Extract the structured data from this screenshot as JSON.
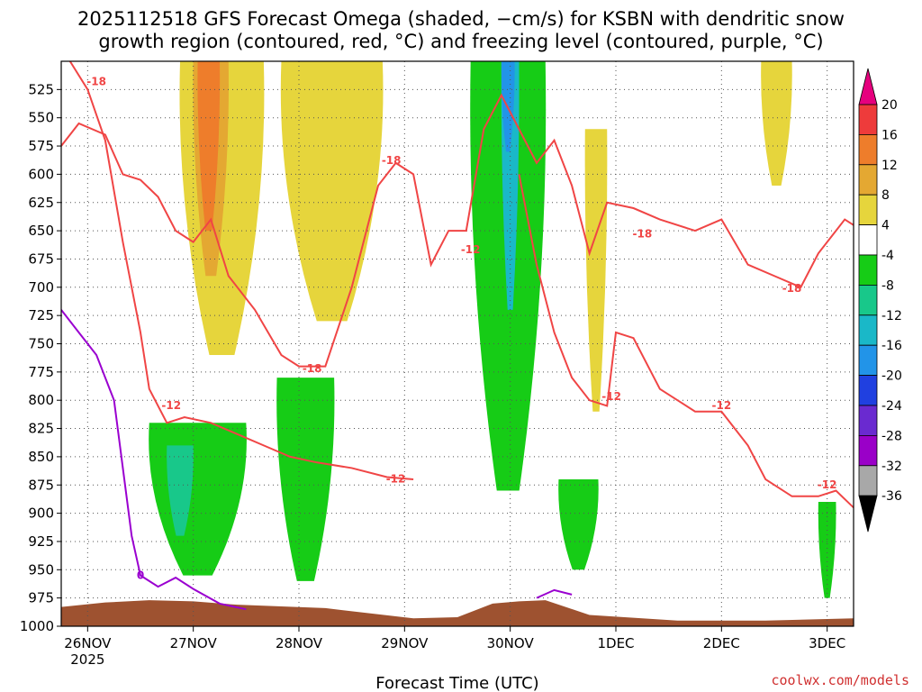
{
  "title_line1": "2025112518 GFS Forecast Omega (shaded, −cm/s) for KSBN with dendritic snow",
  "title_line2": "growth region (contoured, red, °C) and freezing level (contoured, purple, °C)",
  "credit": "coolwx.com/models",
  "colors": {
    "dgz_contour": "#f04545",
    "freezing_contour": "#9a00d0",
    "terrain": "#9e5230",
    "grid": "#555555"
  },
  "chart_data": {
    "type": "heatmap",
    "title": "2025112518 GFS Forecast Omega (shaded, −cm/s) for KSBN with dendritic snow growth region (contoured, red, °C) and freezing level (contoured, purple, °C)",
    "xlabel": "Forecast Time (UTC)",
    "ylabel": "",
    "x_ticks": [
      {
        "label": "26NOV",
        "sublabel": "2025",
        "hour": 6
      },
      {
        "label": "27NOV",
        "sublabel": "",
        "hour": 30
      },
      {
        "label": "28NOV",
        "sublabel": "",
        "hour": 54
      },
      {
        "label": "29NOV",
        "sublabel": "",
        "hour": 78
      },
      {
        "label": "30NOV",
        "sublabel": "",
        "hour": 102
      },
      {
        "label": "1DEC",
        "sublabel": "",
        "hour": 126
      },
      {
        "label": "2DEC",
        "sublabel": "",
        "hour": 150
      },
      {
        "label": "3DEC",
        "sublabel": "",
        "hour": 174
      }
    ],
    "xlim_hours": [
      0,
      180
    ],
    "y_axis_unit": "hPa",
    "ylim": [
      1000,
      500
    ],
    "y_ticks": [
      525,
      550,
      575,
      600,
      625,
      650,
      675,
      700,
      725,
      750,
      775,
      800,
      825,
      850,
      875,
      900,
      925,
      950,
      975,
      1000
    ],
    "colorbar": {
      "levels": [
        20,
        16,
        12,
        8,
        4,
        -4,
        -8,
        -12,
        -16,
        -20,
        -24,
        -28,
        -32,
        -36
      ],
      "bands": [
        {
          "from": 16,
          "to": 20,
          "color": "#ee3b3b"
        },
        {
          "from": 12,
          "to": 16,
          "color": "#ee7d2b"
        },
        {
          "from": 8,
          "to": 12,
          "color": "#e4a832"
        },
        {
          "from": 4,
          "to": 8,
          "color": "#e6d53c"
        },
        {
          "from": -4,
          "to": 4,
          "color": "#ffffff"
        },
        {
          "from": -8,
          "to": -4,
          "color": "#16cc16"
        },
        {
          "from": -12,
          "to": -8,
          "color": "#18c88a"
        },
        {
          "from": -16,
          "to": -12,
          "color": "#1ab8c8"
        },
        {
          "from": -20,
          "to": -16,
          "color": "#2294e8"
        },
        {
          "from": -24,
          "to": -20,
          "color": "#2040e0"
        },
        {
          "from": -28,
          "to": -24,
          "color": "#6a2ad0"
        },
        {
          "from": -32,
          "to": -28,
          "color": "#9a00c8"
        },
        {
          "from": -36,
          "to": -32,
          "color": "#a8a8a8"
        }
      ],
      "top_arrow_color": "#e6007e",
      "bottom_arrow_color": "#000000"
    },
    "contour_labels": [
      {
        "text": "-18",
        "hour": 8,
        "p": 521
      },
      {
        "text": "-18",
        "hour": 75,
        "p": 591
      },
      {
        "text": "-18",
        "hour": 132,
        "p": 656
      },
      {
        "text": "-18",
        "hour": 166,
        "p": 704
      },
      {
        "text": "-18",
        "hour": 57,
        "p": 775
      },
      {
        "text": "-12",
        "hour": 93,
        "p": 670
      },
      {
        "text": "-12",
        "hour": 25,
        "p": 808
      },
      {
        "text": "-12",
        "hour": 76,
        "p": 873
      },
      {
        "text": "-12",
        "hour": 125,
        "p": 800
      },
      {
        "text": "-12",
        "hour": 150,
        "p": 808
      },
      {
        "text": "-12",
        "hour": 174,
        "p": 878
      },
      {
        "text": "0",
        "hour": 18,
        "p": 958
      }
    ],
    "shaded_regions": [
      {
        "color": "#e6d53c",
        "min_value": 4,
        "hours": [
          27,
          46
        ],
        "p": [
          500,
          760
        ]
      },
      {
        "color": "#e4a832",
        "min_value": 8,
        "hours": [
          30,
          38
        ],
        "p": [
          500,
          690
        ]
      },
      {
        "color": "#ee7d2b",
        "min_value": 12,
        "hours": [
          31,
          36
        ],
        "p": [
          500,
          650
        ]
      },
      {
        "color": "#e6d53c",
        "min_value": 4,
        "hours": [
          50,
          73
        ],
        "p": [
          500,
          730
        ]
      },
      {
        "color": "#e6d53c",
        "min_value": 4,
        "hours": [
          119,
          124
        ],
        "p": [
          560,
          810
        ]
      },
      {
        "color": "#e6d53c",
        "min_value": 4,
        "hours": [
          159,
          166
        ],
        "p": [
          500,
          610
        ]
      },
      {
        "color": "#16cc16",
        "min_value": -8,
        "hours": [
          20,
          42
        ],
        "p": [
          820,
          955
        ]
      },
      {
        "color": "#18c88a",
        "min_value": -12,
        "hours": [
          24,
          30
        ],
        "p": [
          840,
          920
        ]
      },
      {
        "color": "#16cc16",
        "min_value": -8,
        "hours": [
          49,
          62
        ],
        "p": [
          780,
          960
        ]
      },
      {
        "color": "#16cc16",
        "min_value": -8,
        "hours": [
          93,
          110
        ],
        "p": [
          500,
          880
        ]
      },
      {
        "color": "#1ab8c8",
        "min_value": -16,
        "hours": [
          100,
          104
        ],
        "p": [
          500,
          720
        ]
      },
      {
        "color": "#2294e8",
        "min_value": -20,
        "hours": [
          100,
          103
        ],
        "p": [
          500,
          580
        ]
      },
      {
        "color": "#16cc16",
        "min_value": -8,
        "hours": [
          113,
          122
        ],
        "p": [
          870,
          950
        ]
      },
      {
        "color": "#16cc16",
        "min_value": -8,
        "hours": [
          172,
          176
        ],
        "p": [
          890,
          975
        ]
      }
    ]
  }
}
